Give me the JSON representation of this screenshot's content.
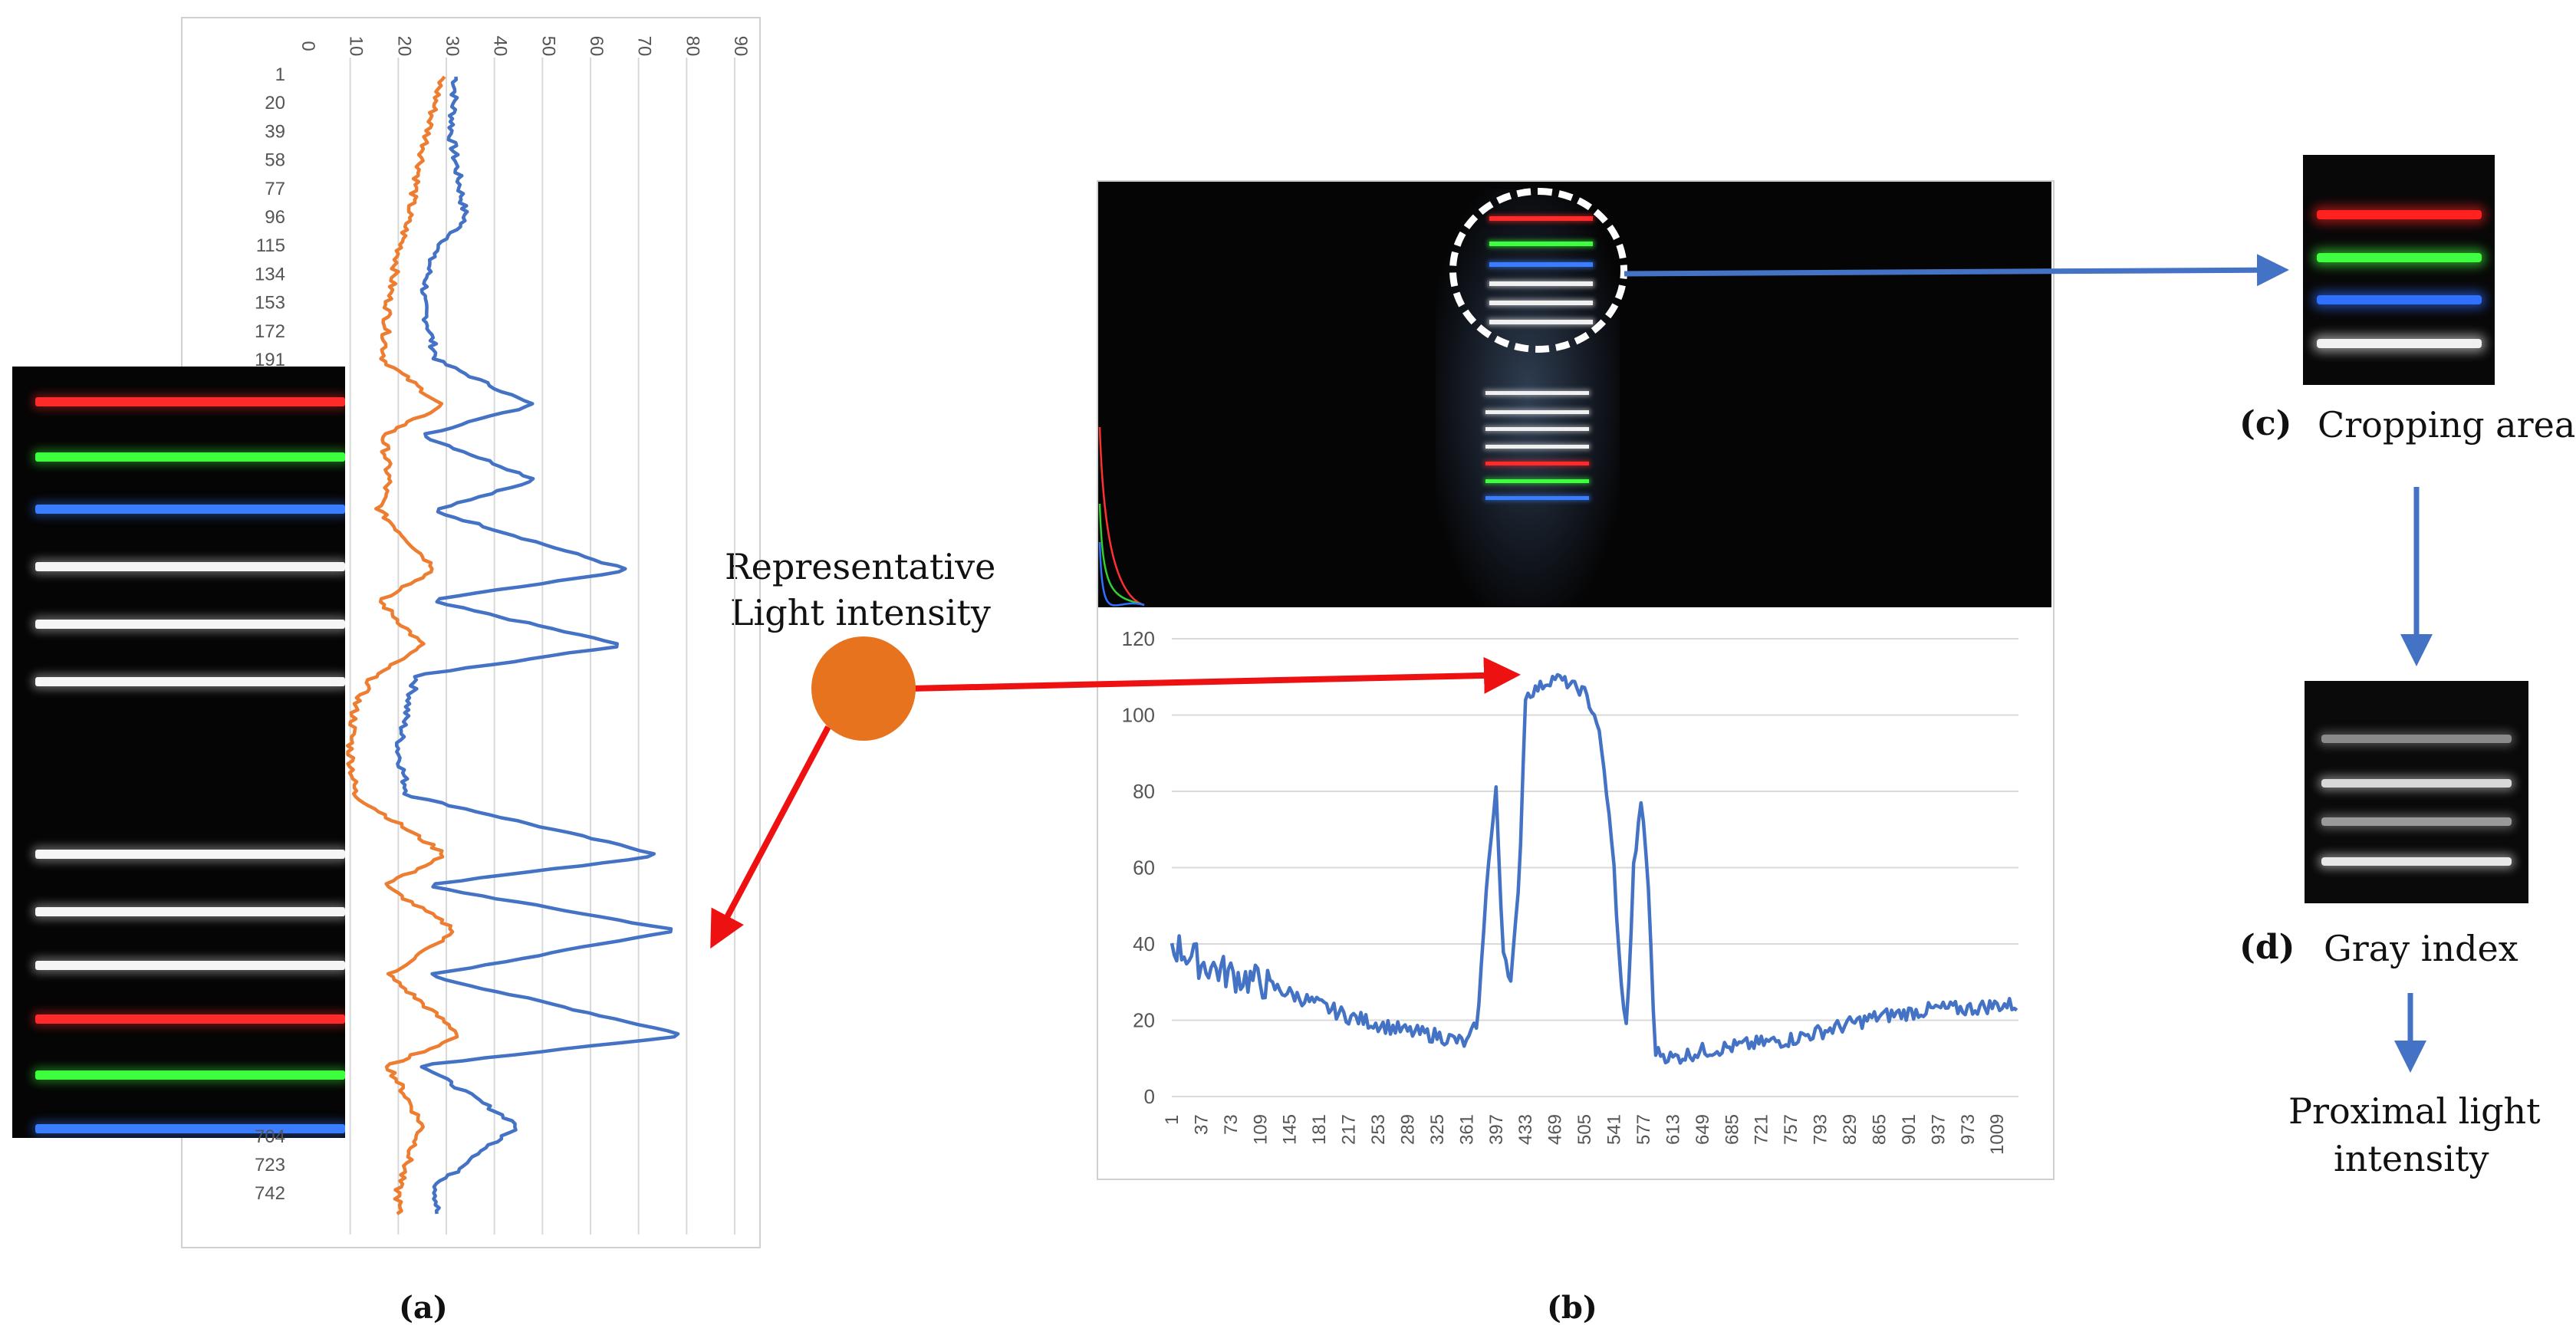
{
  "panel_a": {
    "label": "(a)",
    "x_axis_ticks": [
      "0",
      "10",
      "20",
      "30",
      "40",
      "50",
      "60",
      "70",
      "80",
      "90"
    ],
    "row_ticks": [
      "1",
      "20",
      "39",
      "58",
      "77",
      "96",
      "115",
      "134",
      "153",
      "172",
      "191"
    ],
    "row_ticks_bottom": [
      "704",
      "723",
      "742"
    ],
    "strip_colors": [
      "#ff2a2a",
      "#3dff3d",
      "#3a7dff",
      "#f5f5f5",
      "#f5f5f5",
      "#f5f5f5",
      "#f5f5f5",
      "#f5f5f5",
      "#f5f5f5",
      "#ff2a2a",
      "#3dff3d",
      "#3a7dff"
    ]
  },
  "panel_b": {
    "label": "(b)",
    "photo_bars_top": [
      "#ff2a2a",
      "#3dff3d",
      "#3a7dff",
      "#f0f0f0",
      "#f0f0f0",
      "#f0f0f0"
    ],
    "photo_bars_bottom": [
      "#f0f0f0",
      "#f0f0f0",
      "#f0f0f0",
      "#f0f0f0",
      "#ff2a2a",
      "#3dff3d",
      "#3a7dff"
    ]
  },
  "annotation": {
    "line1": "Representative",
    "line2": "Light intensity"
  },
  "panel_c": {
    "label": "(c)",
    "caption": "Cropping area"
  },
  "panel_d": {
    "label": "(d)",
    "caption": "Gray index"
  },
  "result": {
    "line1": "Proximal light",
    "line2": "intensity"
  },
  "colors": {
    "series_blue": "#4472c4",
    "series_orange": "#ed7d31",
    "arrow_red": "#ee1111",
    "arrow_blue": "#4472c4",
    "marker_orange": "#e8731f"
  },
  "chart_data": [
    {
      "type": "line",
      "title": "",
      "orientation": "rows on vertical axis, intensity on horizontal axis",
      "xlim": [
        0,
        90
      ],
      "row_range": [
        1,
        760
      ],
      "series": [
        {
          "color": "blue",
          "row": [
            1,
            40,
            96,
            120,
            150,
            190,
            220,
            240,
            270,
            290,
            330,
            350,
            380,
            400,
            420,
            450,
            480,
            520,
            540,
            570,
            600,
            640,
            660,
            700,
            740,
            760
          ],
          "values": [
            32,
            31,
            34,
            27,
            25,
            28,
            48,
            25,
            49,
            27,
            68,
            26,
            67,
            24,
            22,
            20,
            22,
            75,
            25,
            78,
            26,
            80,
            25,
            45,
            28,
            28
          ]
        },
        {
          "color": "orange",
          "row": [
            1,
            40,
            96,
            120,
            150,
            190,
            220,
            240,
            270,
            290,
            330,
            350,
            380,
            400,
            420,
            450,
            480,
            520,
            540,
            570,
            600,
            640,
            660,
            700,
            740,
            760
          ],
          "values": [
            29,
            26,
            22,
            20,
            18,
            17,
            29,
            17,
            18,
            16,
            28,
            16,
            25,
            15,
            11,
            10,
            11,
            30,
            17,
            32,
            18,
            33,
            18,
            25,
            20,
            20
          ]
        }
      ]
    },
    {
      "type": "line",
      "title": "",
      "ylim": [
        0,
        120
      ],
      "y_ticks": [
        0,
        20,
        40,
        60,
        80,
        100,
        120
      ],
      "x_ticks": [
        1,
        37,
        73,
        109,
        145,
        181,
        217,
        253,
        289,
        325,
        361,
        397,
        433,
        469,
        505,
        541,
        577,
        613,
        649,
        685,
        721,
        757,
        793,
        829,
        865,
        901,
        937,
        973,
        1009
      ],
      "series": [
        {
          "color": "blue",
          "x": [
            1,
            37,
            73,
            109,
            145,
            181,
            217,
            253,
            289,
            325,
            361,
            375,
            385,
            397,
            405,
            415,
            425,
            433,
            469,
            505,
            521,
            531,
            541,
            549,
            557,
            565,
            575,
            583,
            591,
            613,
            649,
            685,
            721,
            757,
            793,
            829,
            865,
            901,
            937,
            973,
            1009,
            1035
          ],
          "y": [
            40,
            35,
            32,
            30,
            27,
            24,
            21,
            19,
            17,
            16,
            14,
            20,
            55,
            80,
            40,
            30,
            55,
            105,
            110,
            106,
            98,
            82,
            60,
            30,
            18,
            60,
            78,
            55,
            12,
            10,
            12,
            13,
            14,
            15,
            17,
            19,
            21,
            22,
            23,
            23,
            24,
            24
          ]
        }
      ]
    }
  ]
}
